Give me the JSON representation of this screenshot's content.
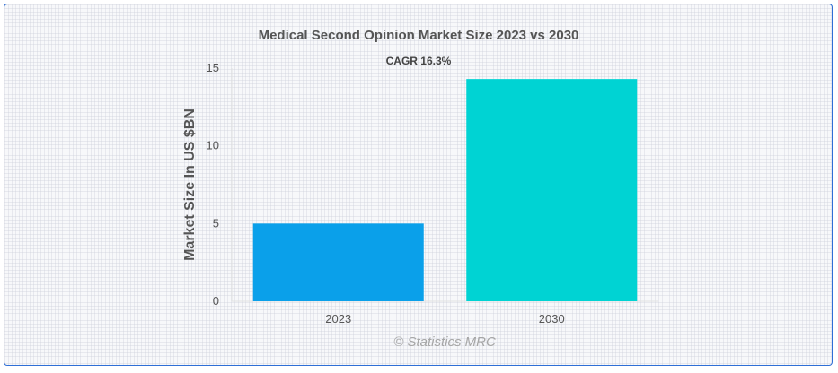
{
  "chart_data": {
    "type": "bar",
    "title": "Medical Second Opinion Market Size 2023 vs 2030",
    "subtitle": "CAGR 16.3%",
    "xlabel": "",
    "ylabel": "Market Size In US $BN",
    "categories": [
      "2023",
      "2030"
    ],
    "values": [
      5.0,
      14.3
    ],
    "colors": [
      "#0aa0ea",
      "#00d3d3"
    ],
    "ylim": [
      0,
      15
    ],
    "yticks": [
      0,
      5,
      10,
      15
    ],
    "grid": false,
    "legend": "none"
  },
  "credit": "© Statistics MRC"
}
